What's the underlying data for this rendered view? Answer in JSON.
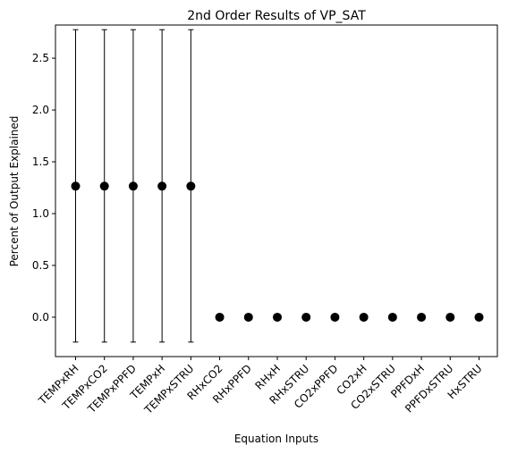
{
  "chart_data": {
    "type": "scatter",
    "title": "2nd Order Results of VP_SAT",
    "xlabel": "Equation Inputs",
    "ylabel": "Percent of Output Explained",
    "ylim": [
      -0.38,
      2.82
    ],
    "yticks": [
      0.0,
      0.5,
      1.0,
      1.5,
      2.0,
      2.5
    ],
    "ytick_labels": [
      "0.0",
      "0.5",
      "1.0",
      "1.5",
      "2.0",
      "2.5"
    ],
    "categories": [
      "TEMPxRH",
      "TEMPxCO2",
      "TEMPxPPFD",
      "TEMPxH",
      "TEMPxSTRU",
      "RHxCO2",
      "RHxPPFD",
      "RHxH",
      "RHxSTRU",
      "CO2xPPFD",
      "CO2xH",
      "CO2xSTRU",
      "PPFDxH",
      "PPFDxSTRU",
      "HxSTRU"
    ],
    "values": [
      1.265,
      1.265,
      1.265,
      1.265,
      1.265,
      0.0,
      0.0,
      0.0,
      0.0,
      0.0,
      0.0,
      0.0,
      0.0,
      0.0,
      0.0
    ],
    "error_low": [
      -0.24,
      -0.24,
      -0.24,
      -0.24,
      -0.24,
      0.0,
      0.0,
      0.0,
      0.0,
      0.0,
      0.0,
      0.0,
      0.0,
      0.0,
      0.0
    ],
    "error_high": [
      2.775,
      2.775,
      2.775,
      2.775,
      2.775,
      0.0,
      0.0,
      0.0,
      0.0,
      0.0,
      0.0,
      0.0,
      0.0,
      0.0,
      0.0
    ],
    "marker_color": "#000000",
    "grid": false,
    "legend": "none"
  }
}
